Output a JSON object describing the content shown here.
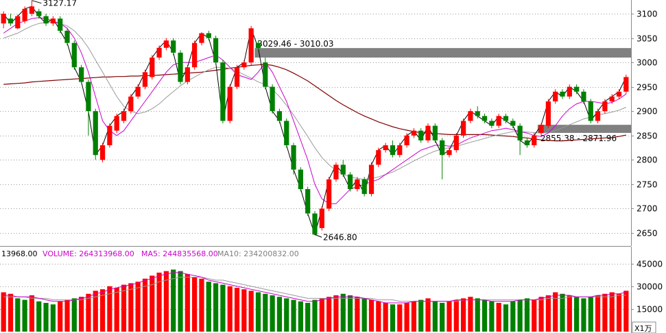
{
  "chart_data": [
    {
      "type": "candlestick",
      "ylim": [
        2620,
        3140
      ],
      "y_ticks": [
        2650,
        2700,
        2750,
        2800,
        2850,
        2900,
        2950,
        3000,
        3050,
        3100
      ],
      "grid": true,
      "candles": [
        [
          3080,
          3100,
          3070,
          3105
        ],
        [
          3090,
          3080,
          3075,
          3100
        ],
        [
          3070,
          3095,
          3068,
          3098
        ],
        [
          3085,
          3110,
          3080,
          3115
        ],
        [
          3100,
          3115,
          3095,
          3127.17
        ],
        [
          3105,
          3095,
          3090,
          3110
        ],
        [
          3095,
          3080,
          3075,
          3100
        ],
        [
          3080,
          3090,
          3075,
          3095
        ],
        [
          3090,
          3065,
          3060,
          3095
        ],
        [
          3065,
          3040,
          3035,
          3070
        ],
        [
          3040,
          2990,
          2985,
          3045
        ],
        [
          2990,
          2960,
          2958,
          2995
        ],
        [
          2960,
          2900,
          2850,
          2965
        ],
        [
          2900,
          2810,
          2800,
          2905
        ],
        [
          2800,
          2830,
          2795,
          2835
        ],
        [
          2830,
          2870,
          2825,
          2875
        ],
        [
          2860,
          2890,
          2855,
          2895
        ],
        [
          2880,
          2900,
          2875,
          2905
        ],
        [
          2900,
          2930,
          2895,
          2935
        ],
        [
          2930,
          2950,
          2925,
          2955
        ],
        [
          2950,
          2980,
          2945,
          2985
        ],
        [
          2970,
          3010,
          2965,
          3015
        ],
        [
          3010,
          3030,
          3005,
          3035
        ],
        [
          3030,
          3045,
          3025,
          3050
        ],
        [
          3045,
          3020,
          3015,
          3050
        ],
        [
          3020,
          2960,
          2955,
          3025
        ],
        [
          2960,
          2990,
          2955,
          2995
        ],
        [
          2990,
          3040,
          2985,
          3045
        ],
        [
          3040,
          3060,
          3035,
          3062
        ],
        [
          3060,
          3050,
          3045,
          3065
        ],
        [
          3050,
          3000,
          2995,
          3055
        ],
        [
          3000,
          2880,
          2875,
          3005
        ],
        [
          2880,
          2950,
          2875,
          2955
        ],
        [
          2950,
          2990,
          2945,
          2995
        ],
        [
          2990,
          3000,
          2985,
          3005
        ],
        [
          3000,
          3070,
          2995,
          3075
        ],
        [
          3040,
          3029.46,
          3025,
          3045
        ],
        [
          3000,
          2950,
          2945,
          3010.03
        ],
        [
          2950,
          2900,
          2895,
          2955
        ],
        [
          2900,
          2880,
          2875,
          2905
        ],
        [
          2880,
          2830,
          2825,
          2885
        ],
        [
          2830,
          2780,
          2770,
          2835
        ],
        [
          2780,
          2740,
          2735,
          2785
        ],
        [
          2740,
          2690,
          2685,
          2745
        ],
        [
          2690,
          2646.8,
          2646.8,
          2695
        ],
        [
          2660,
          2700,
          2655,
          2705
        ],
        [
          2700,
          2760,
          2695,
          2765
        ],
        [
          2760,
          2790,
          2755,
          2795
        ],
        [
          2790,
          2770,
          2765,
          2800
        ],
        [
          2770,
          2740,
          2735,
          2775
        ],
        [
          2740,
          2760,
          2735,
          2765
        ],
        [
          2760,
          2730,
          2725,
          2765
        ],
        [
          2730,
          2790,
          2725,
          2795
        ],
        [
          2790,
          2820,
          2785,
          2825
        ],
        [
          2820,
          2830,
          2815,
          2835
        ],
        [
          2830,
          2810,
          2805,
          2840
        ],
        [
          2810,
          2830,
          2805,
          2835
        ],
        [
          2830,
          2850,
          2825,
          2855
        ],
        [
          2850,
          2860,
          2845,
          2865
        ],
        [
          2860,
          2840,
          2835,
          2865
        ],
        [
          2840,
          2870,
          2835,
          2875
        ],
        [
          2870,
          2840,
          2835,
          2875
        ],
        [
          2840,
          2810,
          2760,
          2845
        ],
        [
          2810,
          2820,
          2805,
          2825
        ],
        [
          2820,
          2850,
          2815,
          2855
        ],
        [
          2850,
          2880,
          2845,
          2885
        ],
        [
          2880,
          2900,
          2875,
          2905
        ],
        [
          2900,
          2890,
          2885,
          2910
        ],
        [
          2890,
          2880,
          2875,
          2895
        ],
        [
          2880,
          2870,
          2865,
          2885
        ],
        [
          2870,
          2890,
          2865,
          2895
        ],
        [
          2890,
          2880,
          2875,
          2895
        ],
        [
          2880,
          2870,
          2865,
          2885
        ],
        [
          2870,
          2840,
          2810,
          2875
        ],
        [
          2840,
          2830,
          2825,
          2845
        ],
        [
          2830,
          2850,
          2825,
          2855
        ],
        [
          2855.38,
          2871.96,
          2850,
          2875
        ],
        [
          2870,
          2920,
          2865,
          2925
        ],
        [
          2920,
          2940,
          2915,
          2945
        ],
        [
          2940,
          2930,
          2925,
          2945
        ],
        [
          2930,
          2950,
          2925,
          2955
        ],
        [
          2950,
          2940,
          2935,
          2955
        ],
        [
          2940,
          2920,
          2915,
          2945
        ],
        [
          2920,
          2880,
          2875,
          2925
        ],
        [
          2880,
          2900,
          2875,
          2905
        ],
        [
          2900,
          2920,
          2895,
          2925
        ],
        [
          2920,
          2930,
          2915,
          2935
        ],
        [
          2930,
          2940,
          2925,
          2945
        ],
        [
          2940,
          2970,
          2935,
          2975
        ]
      ],
      "ma_values": {
        "ma5": [
          3060,
          3070,
          3080,
          3085,
          3090,
          3092,
          3090,
          3085,
          3080,
          3070,
          3050,
          3020,
          2980,
          2930,
          2880,
          2860,
          2850,
          2860,
          2880,
          2900,
          2920,
          2940,
          2960,
          2980,
          2995,
          3000,
          3000,
          3000,
          3005,
          3010,
          3015,
          3005,
          2990,
          2975,
          2970,
          2965,
          2980,
          3000,
          2980,
          2950,
          2920,
          2880,
          2840,
          2800,
          2750,
          2720,
          2710,
          2710,
          2725,
          2740,
          2745,
          2750,
          2755,
          2760,
          2770,
          2780,
          2790,
          2800,
          2810,
          2820,
          2825,
          2830,
          2830,
          2828,
          2830,
          2838,
          2845,
          2850,
          2855,
          2860,
          2862,
          2865,
          2862,
          2858,
          2855,
          2850,
          2848,
          2855,
          2870,
          2890,
          2905,
          2915,
          2920,
          2920,
          2918,
          2915,
          2918,
          2925,
          2935
        ],
        "ma10": [
          3050,
          3055,
          3060,
          3068,
          3075,
          3080,
          3082,
          3082,
          3080,
          3075,
          3065,
          3050,
          3030,
          3005,
          2980,
          2955,
          2930,
          2910,
          2900,
          2895,
          2898,
          2905,
          2915,
          2928,
          2940,
          2952,
          2962,
          2970,
          2978,
          2985,
          2990,
          2990,
          2988,
          2982,
          2975,
          2968,
          2960,
          2955,
          2945,
          2930,
          2912,
          2892,
          2870,
          2848,
          2825,
          2805,
          2790,
          2778,
          2770,
          2765,
          2762,
          2760,
          2762,
          2765,
          2770,
          2775,
          2782,
          2790,
          2798,
          2805,
          2812,
          2818,
          2822,
          2825,
          2828,
          2832,
          2836,
          2840,
          2844,
          2848,
          2852,
          2855,
          2858,
          2858,
          2857,
          2856,
          2855,
          2856,
          2860,
          2866,
          2872,
          2878,
          2884,
          2888,
          2892,
          2895,
          2898,
          2902,
          2908
        ],
        "ma60": [
          2955,
          2956,
          2957,
          2958,
          2960,
          2961,
          2962,
          2963,
          2964,
          2965,
          2966,
          2967,
          2968,
          2969,
          2970,
          2970,
          2971,
          2971,
          2972,
          2972,
          2973,
          2973,
          2974,
          2975,
          2976,
          2977,
          2978,
          2979,
          2980,
          2982,
          2984,
          2986,
          2988,
          2990,
          2992,
          2994,
          2995,
          2996,
          2994,
          2990,
          2985,
          2978,
          2970,
          2962,
          2952,
          2942,
          2932,
          2922,
          2913,
          2905,
          2897,
          2890,
          2884,
          2878,
          2873,
          2868,
          2864,
          2861,
          2858,
          2856,
          2855,
          2854,
          2853,
          2852,
          2852,
          2852,
          2852,
          2852,
          2852,
          2851,
          2850,
          2849,
          2848,
          2846,
          2845,
          2843,
          2841,
          2840,
          2839,
          2839,
          2840,
          2841,
          2842,
          2843,
          2844,
          2845,
          2846,
          2848,
          2851
        ]
      },
      "gaps": [
        {
          "label": "3029.46 - 3010.03",
          "from": 3010.03,
          "to": 3029.46
        },
        {
          "label": "2855.38 - 2871.96",
          "from": 2855.38,
          "to": 2871.96
        }
      ],
      "annotations": [
        {
          "label": "3127.17",
          "value": 3127.17
        },
        {
          "label": "2646.80",
          "value": 2646.8
        }
      ]
    },
    {
      "type": "bar",
      "ylim": [
        0,
        48000
      ],
      "y_ticks": [
        15000,
        30000,
        45000
      ],
      "values": [
        26,
        25,
        22,
        21,
        24,
        20,
        19,
        18,
        20,
        21,
        22,
        23,
        25,
        27,
        28,
        30,
        29,
        31,
        32,
        33,
        35,
        37,
        39,
        40,
        41,
        40,
        38,
        36,
        35,
        33,
        32,
        31,
        30,
        29,
        28,
        27,
        26,
        25,
        24,
        23,
        22,
        21,
        20,
        19,
        21,
        22,
        23,
        24,
        25,
        24,
        23,
        22,
        21,
        20,
        19,
        18,
        18,
        19,
        20,
        21,
        22,
        20,
        19,
        20,
        21,
        22,
        23,
        22,
        21,
        20,
        19,
        18,
        20,
        21,
        22,
        21,
        23,
        24,
        26,
        25,
        24,
        23,
        22,
        23,
        24,
        25,
        26,
        25,
        27
      ],
      "up": [
        1,
        1,
        0,
        0,
        1,
        0,
        0,
        0,
        1,
        1,
        0,
        1,
        1,
        1,
        1,
        1,
        1,
        1,
        1,
        1,
        1,
        1,
        1,
        1,
        0,
        0,
        1,
        1,
        1,
        0,
        0,
        0,
        1,
        1,
        1,
        1,
        0,
        0,
        0,
        0,
        0,
        0,
        0,
        0,
        0,
        1,
        1,
        1,
        0,
        0,
        1,
        0,
        1,
        1,
        1,
        0,
        1,
        1,
        1,
        0,
        1,
        0,
        0,
        1,
        1,
        1,
        1,
        0,
        0,
        0,
        1,
        0,
        0,
        0,
        0,
        1,
        1,
        1,
        1,
        0,
        1,
        0,
        0,
        0,
        1,
        1,
        1,
        1,
        1
      ],
      "ma5": [
        24,
        24,
        23,
        23,
        23,
        22,
        21,
        20,
        20,
        20,
        21,
        22,
        23,
        25,
        26,
        28,
        29,
        30,
        31,
        32,
        34,
        35,
        37,
        38,
        39,
        39,
        38,
        37,
        36,
        34,
        33,
        32,
        31,
        30,
        29,
        28,
        27,
        26,
        25,
        24,
        23,
        22,
        21,
        20,
        20,
        21,
        22,
        23,
        23,
        23,
        23,
        22,
        21,
        20,
        19,
        19,
        19,
        19,
        20,
        20,
        20,
        20,
        20,
        20,
        21,
        21,
        21,
        21,
        21,
        20,
        20,
        20,
        20,
        21,
        21,
        21,
        22,
        23,
        24,
        24,
        24,
        23,
        23,
        23,
        24,
        24,
        25,
        25,
        26
      ],
      "ma10": [
        23,
        23,
        23,
        23,
        22,
        22,
        22,
        21,
        21,
        21,
        21,
        21,
        22,
        23,
        24,
        25,
        26,
        27,
        28,
        29,
        30,
        31,
        33,
        34,
        35,
        36,
        36,
        36,
        36,
        35,
        34,
        34,
        33,
        32,
        31,
        30,
        29,
        28,
        27,
        26,
        25,
        24,
        23,
        22,
        22,
        22,
        22,
        22,
        22,
        22,
        22,
        22,
        22,
        21,
        21,
        21,
        20,
        20,
        20,
        20,
        20,
        20,
        20,
        20,
        20,
        21,
        21,
        21,
        21,
        21,
        21,
        21,
        21,
        21,
        21,
        21,
        21,
        22,
        22,
        22,
        23,
        23,
        23,
        23,
        23,
        23,
        23,
        24,
        24
      ]
    }
  ],
  "volume_header": {
    "left_value": "13968.00",
    "volume": "VOLUME: 264313968.00",
    "ma5": "MA5: 244835568.00",
    "ma10": "MA10: 234200832.00"
  },
  "unit_label": "X1万",
  "colors": {
    "up": "#ff0000",
    "down": "#008000",
    "ma5": "#000000",
    "ma10": "#cc00cc",
    "ma20": "#999999",
    "ma60": "#800000",
    "gap": "#808080"
  }
}
